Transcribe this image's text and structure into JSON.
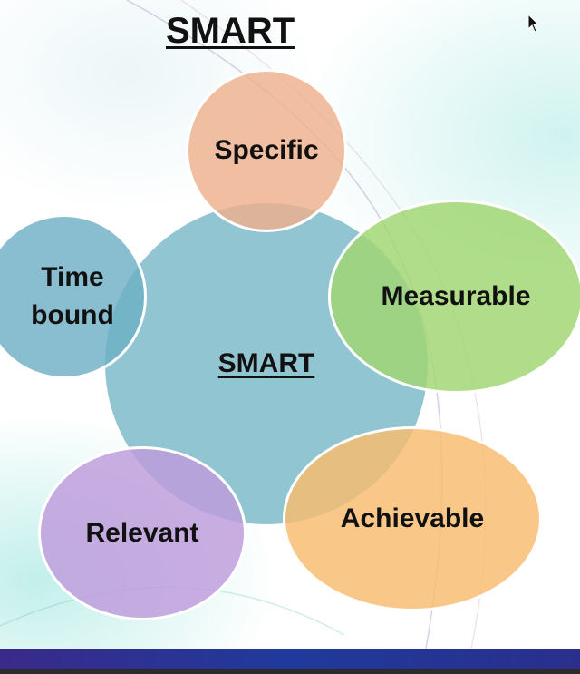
{
  "slide": {
    "title": "SMART"
  },
  "diagram": {
    "center_label": "SMART",
    "nodes": [
      {
        "key": "specific",
        "label": "Specific",
        "color": "#eeb08c"
      },
      {
        "key": "measurable",
        "label": "Measurable",
        "color": "#a9dc7c"
      },
      {
        "key": "achievable",
        "label": "Achievable",
        "color": "#f8c07a"
      },
      {
        "key": "relevant",
        "label": "Relevant",
        "color": "#c3a2dc"
      },
      {
        "key": "time_bound",
        "label": "Time bound",
        "color": "#7ab8c8"
      }
    ],
    "center_color": "#82bdcc"
  }
}
